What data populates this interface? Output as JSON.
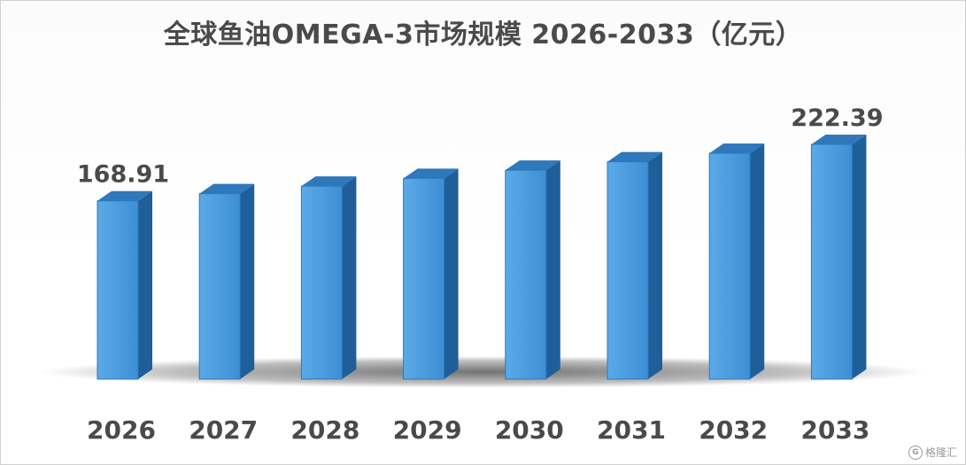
{
  "chart_data": {
    "type": "bar",
    "title": "全球鱼油OMEGA-3市场规模 2026-2033（亿元）",
    "categories": [
      "2026",
      "2027",
      "2028",
      "2029",
      "2030",
      "2031",
      "2032",
      "2033"
    ],
    "values": [
      168.91,
      175.7,
      182.8,
      190.2,
      197.9,
      205.9,
      214.0,
      222.39
    ],
    "data_labels": {
      "0": "168.91",
      "7": "222.39"
    },
    "bar_color": "#3a8fd6",
    "bar_side_color": "#1f5f99",
    "bar_top_color": "#2f78bb",
    "grid": false,
    "legend": "none",
    "style": "3d-column"
  },
  "watermark": {
    "icon": "G",
    "text": "格隆汇"
  }
}
